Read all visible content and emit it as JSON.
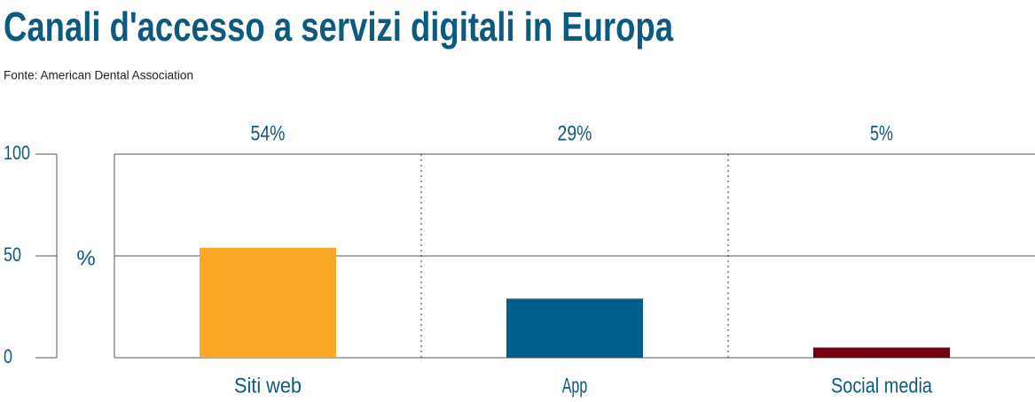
{
  "chart_data": {
    "type": "bar",
    "title": "Canali d'accesso a servizi digitali in Europa",
    "subtitle": "Fonte: American Dental Association",
    "ylabel": "%",
    "categories": [
      "Siti web",
      "App",
      "Social media"
    ],
    "values": [
      54,
      29,
      5
    ],
    "value_labels": [
      "54%",
      "29%",
      "5%"
    ],
    "colors": [
      "#f9a825",
      "#005f8a",
      "#75000f"
    ],
    "ylim": [
      0,
      100
    ],
    "yticks": [
      0,
      50,
      100
    ],
    "grid": true
  }
}
